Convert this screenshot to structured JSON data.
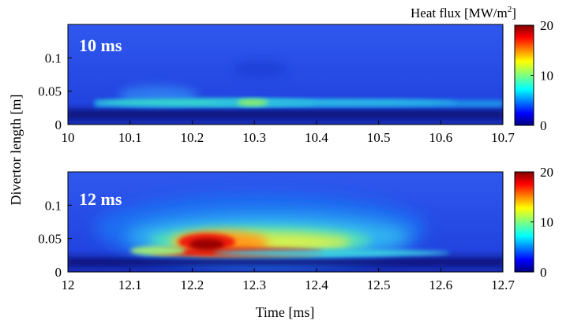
{
  "chart_data": [
    {
      "type": "heatmap",
      "panel_label": "10 ms",
      "xlabel": "",
      "ylabel": "Divertor length [m]",
      "xlim": [
        10,
        10.7
      ],
      "ylim": [
        0,
        0.15
      ],
      "x_ticks": [
        "10",
        "10.1",
        "10.2",
        "10.3",
        "10.4",
        "10.5",
        "10.6",
        "10.7"
      ],
      "y_ticks": [
        "0",
        "0.05",
        "0.1"
      ],
      "colorbar": {
        "title": "Heat flux [MW/m",
        "title_sup": "2",
        "title_close": "]",
        "range": [
          0,
          20
        ],
        "ticks": [
          "0",
          "10",
          "20"
        ]
      },
      "features": [
        {
          "x_start": 10.08,
          "x_end": 10.7,
          "y_center": 0.035,
          "peak_heat_flux": 10,
          "description_values": [
            8,
            10,
            9,
            6,
            5,
            4
          ]
        }
      ]
    },
    {
      "type": "heatmap",
      "panel_label": "12 ms",
      "xlabel": "Time [ms]",
      "ylabel": "Divertor length [m]",
      "xlim": [
        12,
        12.7
      ],
      "ylim": [
        0,
        0.15
      ],
      "x_ticks": [
        "12",
        "12.1",
        "12.2",
        "12.3",
        "12.4",
        "12.5",
        "12.6",
        "12.7"
      ],
      "y_ticks": [
        "0",
        "0.05",
        "0.1"
      ],
      "colorbar": {
        "range": [
          0,
          20
        ],
        "ticks": [
          "0",
          "10",
          "20"
        ]
      },
      "features": [
        {
          "x_start": 12.08,
          "x_end": 12.65,
          "y_center": 0.03,
          "peak_heat_flux": 20,
          "description_values": [
            10,
            18,
            20,
            16,
            14,
            10,
            6
          ]
        }
      ]
    }
  ],
  "axes": {
    "shared_ylabel": "Divertor length [m]",
    "shared_xlabel": "Time [ms]"
  }
}
